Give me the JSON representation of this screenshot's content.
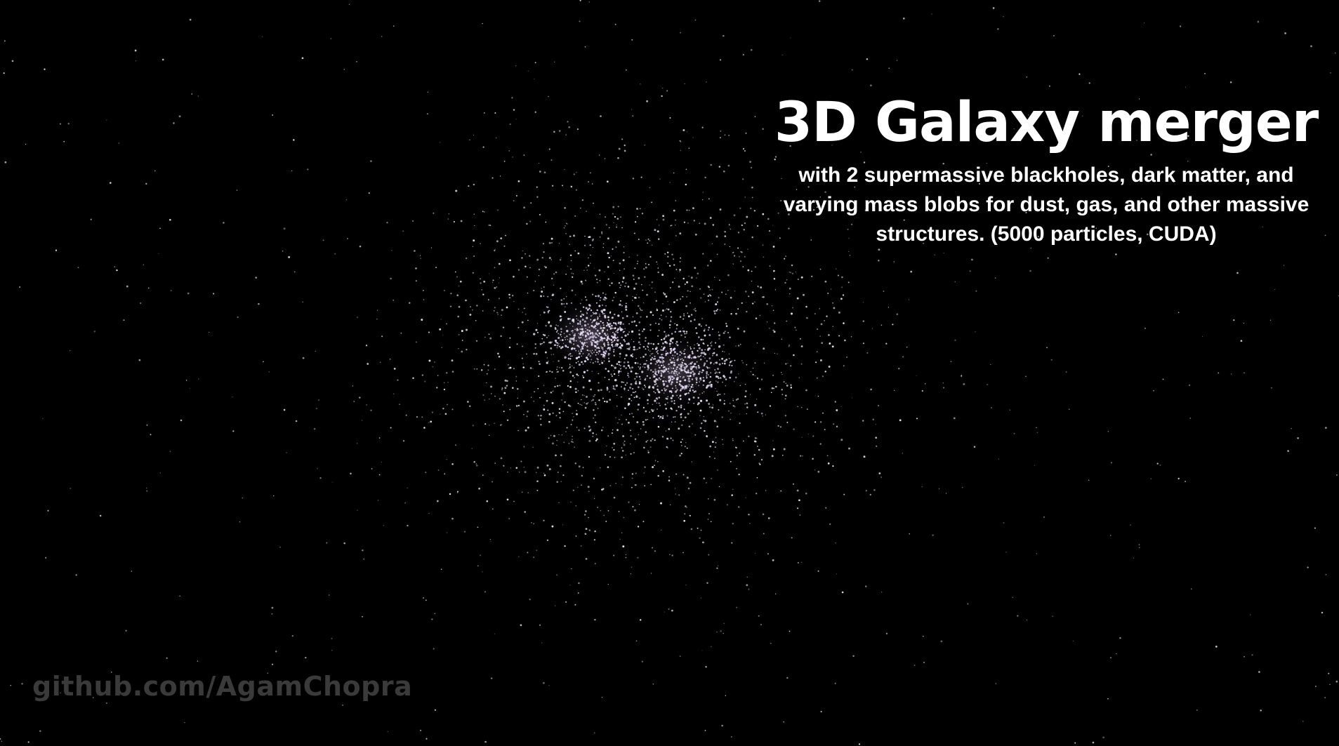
{
  "title": "3D Galaxy merger",
  "subtitle": "with 2 supermassive blackholes, dark matter, and varying mass blobs for dust, gas, and other massive structures. (5000 particles, CUDA)",
  "watermark": "github.com/AgamChopra",
  "colors": {
    "background": "#000000",
    "text": "#ffffff",
    "watermark": "#3a3a3a",
    "particle": "#f3ecff",
    "particle_core_tint": "#e6d8f5"
  },
  "scene": {
    "description_icon": "particle-simulation-render",
    "galaxy_cores": 2
  }
}
